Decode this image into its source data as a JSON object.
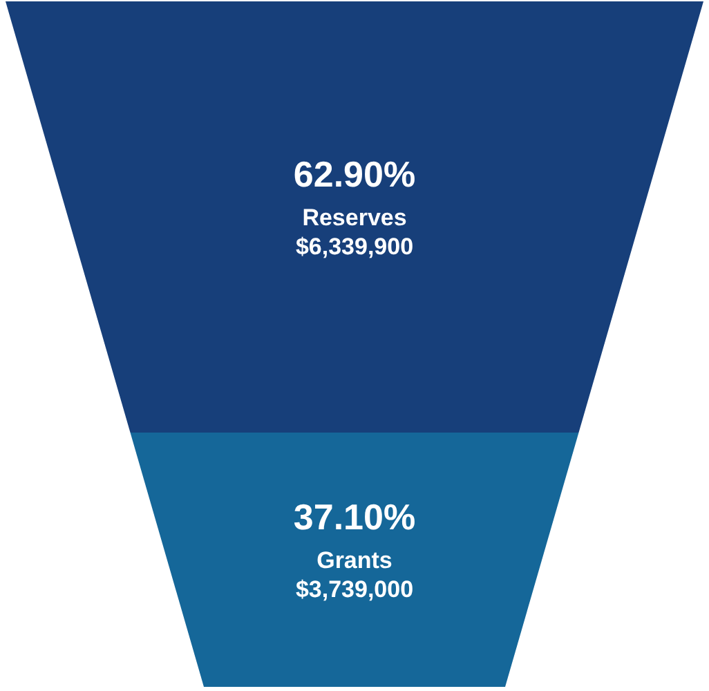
{
  "chart_data": {
    "type": "other",
    "categories": [
      "Reserves",
      "Grants"
    ],
    "colors": [
      "#173f7a",
      "#156799"
    ],
    "series": [
      {
        "values": [
          62.9,
          37.1
        ],
        "value_labels": [
          "62.90%",
          "37.10%"
        ]
      },
      {
        "values": [
          6339900,
          3739000
        ],
        "value_labels": [
          "$6,339,900",
          "$3,739,000"
        ]
      }
    ]
  }
}
